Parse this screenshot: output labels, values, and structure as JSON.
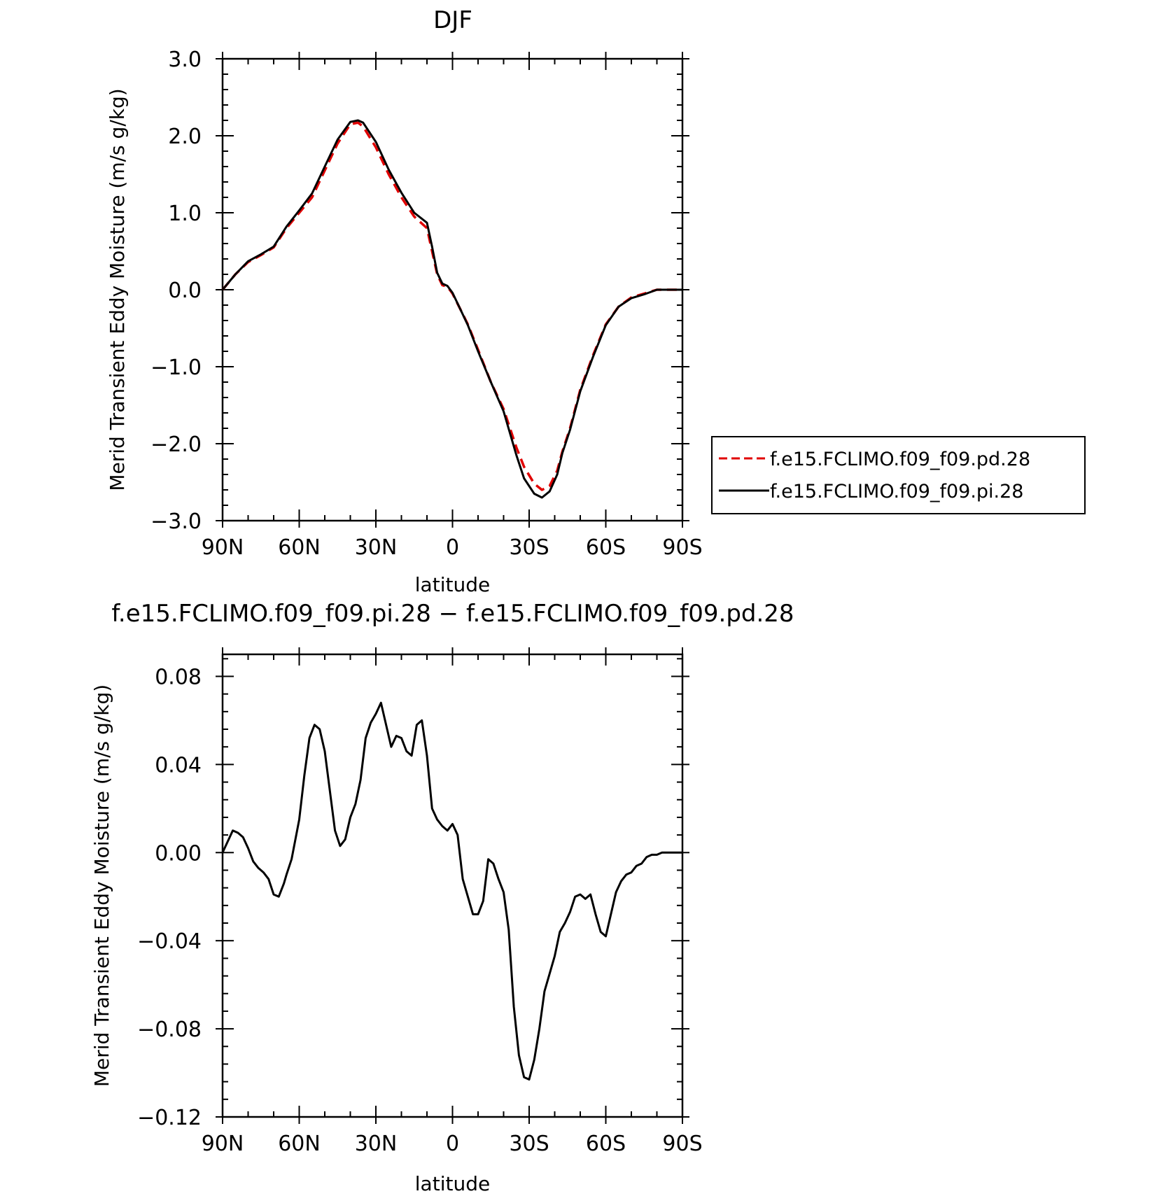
{
  "chart_data": [
    {
      "type": "line",
      "title": "DJF",
      "xlabel": "latitude",
      "ylabel": "Merid Transient Eddy Moisture (m/s g/kg)",
      "xlim": [
        90,
        -90
      ],
      "ylim": [
        -3.0,
        3.0
      ],
      "x_ticks": [
        90,
        60,
        30,
        0,
        -30,
        -60,
        -90
      ],
      "x_tick_labels": [
        "90N",
        "60N",
        "30N",
        "0",
        "30S",
        "60S",
        "90S"
      ],
      "y_ticks": [
        3.0,
        2.0,
        1.0,
        0.0,
        -1.0,
        -2.0,
        -3.0
      ],
      "y_tick_labels": [
        "3.0",
        "2.0",
        "1.0",
        "0.0",
        "−1.0",
        "−2.0",
        "−3.0"
      ],
      "legend_position": "right",
      "series": [
        {
          "name": "f.e15.FCLIMO.f09_f09.pd.28",
          "color": "#e00000",
          "dash": "dashed",
          "x": [
            90,
            85,
            80,
            75,
            70,
            65,
            60,
            55,
            50,
            45,
            40,
            37,
            35,
            30,
            25,
            20,
            15,
            10,
            8,
            6,
            4,
            2,
            0,
            -3,
            -6,
            -10,
            -15,
            -20,
            -25,
            -28,
            -32,
            -35,
            -38,
            -41,
            -43,
            -46,
            -50,
            -55,
            -60,
            -65,
            -70,
            -75,
            -80,
            -85,
            -90
          ],
          "y": [
            0.0,
            0.2,
            0.36,
            0.45,
            0.55,
            0.8,
            1.0,
            1.2,
            1.55,
            1.9,
            2.15,
            2.17,
            2.12,
            1.85,
            1.5,
            1.2,
            0.95,
            0.8,
            0.5,
            0.2,
            0.06,
            0.04,
            -0.05,
            -0.25,
            -0.45,
            -0.78,
            -1.2,
            -1.55,
            -2.05,
            -2.3,
            -2.52,
            -2.6,
            -2.55,
            -2.35,
            -2.1,
            -1.8,
            -1.3,
            -0.85,
            -0.45,
            -0.22,
            -0.1,
            -0.05,
            0.0,
            0.0,
            0.0
          ]
        },
        {
          "name": "f.e15.FCLIMO.f09_f09.pi.28",
          "color": "#000000",
          "dash": "solid",
          "x": [
            90,
            85,
            80,
            75,
            70,
            65,
            60,
            55,
            50,
            45,
            40,
            37,
            35,
            30,
            25,
            20,
            15,
            10,
            8,
            6,
            4,
            2,
            0,
            -3,
            -6,
            -10,
            -15,
            -20,
            -25,
            -28,
            -32,
            -35,
            -38,
            -41,
            -43,
            -46,
            -50,
            -55,
            -60,
            -65,
            -70,
            -75,
            -80,
            -85,
            -90
          ],
          "y": [
            0.0,
            0.2,
            0.37,
            0.46,
            0.56,
            0.82,
            1.03,
            1.25,
            1.6,
            1.95,
            2.18,
            2.2,
            2.17,
            1.92,
            1.56,
            1.26,
            1.0,
            0.87,
            0.56,
            0.22,
            0.08,
            0.05,
            -0.04,
            -0.25,
            -0.46,
            -0.8,
            -1.2,
            -1.58,
            -2.15,
            -2.45,
            -2.65,
            -2.7,
            -2.62,
            -2.4,
            -2.12,
            -1.82,
            -1.32,
            -0.87,
            -0.46,
            -0.22,
            -0.11,
            -0.06,
            0.0,
            0.0,
            0.0
          ]
        }
      ]
    },
    {
      "type": "line",
      "title": "f.e15.FCLIMO.f09_f09.pi.28 − f.e15.FCLIMO.f09_f09.pd.28",
      "xlabel": "latitude",
      "ylabel": "Merid Transient Eddy Moisture (m/s g/kg)",
      "xlim": [
        90,
        -90
      ],
      "ylim": [
        -0.12,
        0.09
      ],
      "x_ticks": [
        90,
        60,
        30,
        0,
        -30,
        -60,
        -90
      ],
      "x_tick_labels": [
        "90N",
        "60N",
        "30N",
        "0",
        "30S",
        "60S",
        "90S"
      ],
      "y_ticks": [
        0.08,
        0.04,
        0.0,
        -0.04,
        -0.08,
        -0.12
      ],
      "y_tick_labels": [
        "0.08",
        "0.04",
        "0.00",
        "−0.04",
        "−0.08",
        "−0.12"
      ],
      "series": [
        {
          "color": "#000000",
          "dash": "solid",
          "x": [
            90,
            88,
            86,
            84,
            82,
            80,
            78,
            76,
            74,
            72,
            70,
            68,
            66,
            65,
            63,
            60,
            58,
            56,
            54,
            52,
            50,
            48,
            46,
            44,
            42,
            40,
            38,
            36,
            34,
            32,
            30,
            28,
            26,
            24,
            22,
            20,
            18,
            16,
            14,
            12,
            10,
            8,
            6,
            4,
            2,
            0,
            -2,
            -4,
            -6,
            -8,
            -10,
            -12,
            -14,
            -16,
            -18,
            -20,
            -22,
            -24,
            -26,
            -28,
            -30,
            -32,
            -34,
            -36,
            -38,
            -40,
            -42,
            -44,
            -46,
            -48,
            -50,
            -52,
            -54,
            -56,
            -58,
            -60,
            -62,
            -64,
            -66,
            -68,
            -70,
            -72,
            -74,
            -76,
            -78,
            -80,
            -82,
            -84,
            -86,
            -88,
            -90
          ],
          "y": [
            0.0,
            0.005,
            0.01,
            0.009,
            0.007,
            0.002,
            -0.004,
            -0.007,
            -0.009,
            -0.012,
            -0.019,
            -0.02,
            -0.014,
            -0.01,
            -0.003,
            0.015,
            0.035,
            0.052,
            0.058,
            0.056,
            0.046,
            0.028,
            0.01,
            0.003,
            0.006,
            0.016,
            0.022,
            0.033,
            0.052,
            0.059,
            0.063,
            0.068,
            0.058,
            0.048,
            0.053,
            0.052,
            0.046,
            0.044,
            0.058,
            0.06,
            0.044,
            0.02,
            0.015,
            0.012,
            0.01,
            0.013,
            0.008,
            -0.012,
            -0.02,
            -0.028,
            -0.028,
            -0.022,
            -0.003,
            -0.005,
            -0.012,
            -0.018,
            -0.035,
            -0.07,
            -0.092,
            -0.102,
            -0.103,
            -0.094,
            -0.08,
            -0.063,
            -0.055,
            -0.047,
            -0.036,
            -0.032,
            -0.027,
            -0.02,
            -0.019,
            -0.021,
            -0.019,
            -0.028,
            -0.036,
            -0.038,
            -0.028,
            -0.018,
            -0.013,
            -0.01,
            -0.009,
            -0.006,
            -0.005,
            -0.002,
            -0.001,
            -0.001,
            0.0,
            0.0,
            0.0,
            0.0,
            0.0
          ]
        }
      ]
    }
  ]
}
